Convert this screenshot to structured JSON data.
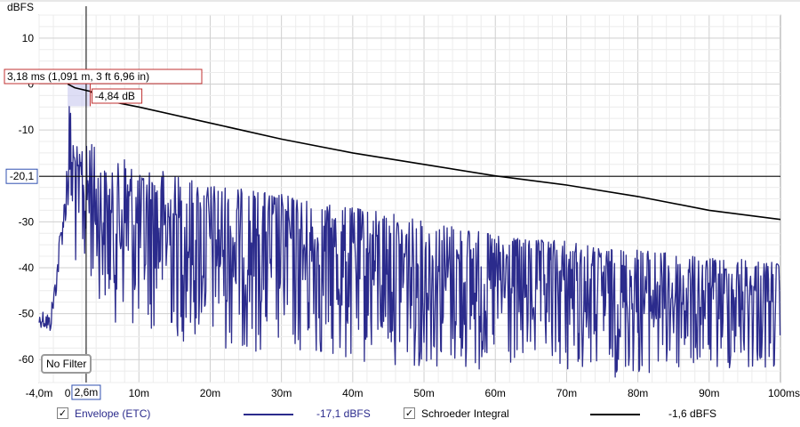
{
  "chart_data": {
    "type": "line",
    "ylabel": "dBFS",
    "xlabel": "",
    "xlim": [
      -4.0,
      100.0
    ],
    "ylim": [
      -65,
      15
    ],
    "x_ticks": [
      -4,
      0,
      10,
      20,
      30,
      40,
      50,
      60,
      70,
      80,
      90,
      100
    ],
    "x_tick_labels": [
      "-4,0m",
      "0",
      "10m",
      "20m",
      "30m",
      "40m",
      "50m",
      "60m",
      "70m",
      "80m",
      "90m",
      "100ms"
    ],
    "y_ticks": [
      10,
      0,
      -10,
      -20,
      -30,
      -40,
      -50,
      -60
    ],
    "y_tick_labels": [
      "10",
      "0",
      "-10",
      "",
      "-30",
      "-40",
      "-50",
      "-60"
    ],
    "grid": true,
    "cursor": {
      "x_label": "2,6m",
      "y_label": "-20,1",
      "x": 2.6,
      "y": -20.1
    },
    "annotations": [
      {
        "text": "3,18 ms (1,091 m, 3 ft 6,96 in)",
        "x": 3.18
      },
      {
        "text": "-4,84 dB",
        "value": -4.84
      }
    ],
    "series": [
      {
        "name": "Envelope (ETC)",
        "color": "#2b2b8c",
        "readout": "-17,1 dBFS",
        "x": [
          -4.0,
          -3.5,
          -3.0,
          -2.5,
          -2.0,
          -1.5,
          -1.0,
          -0.5,
          0.0,
          0.3,
          0.6,
          1.0,
          1.5,
          2.0,
          2.6,
          3.2,
          4,
          5,
          6,
          8,
          10,
          12,
          15,
          20,
          25,
          30,
          35,
          40,
          45,
          50,
          55,
          60,
          65,
          70,
          75,
          80,
          85,
          90,
          95,
          100
        ],
        "upper": [
          -50,
          -49,
          -49,
          -50,
          -45,
          -38,
          -30,
          -25,
          -10,
          -2,
          -12,
          -8,
          -17,
          -12,
          -14,
          -9,
          -16,
          -18,
          -20,
          -15,
          -20,
          -18,
          -20,
          -22,
          -23,
          -24,
          -26,
          -27,
          -28,
          -30,
          -31,
          -33,
          -34,
          -34,
          -36,
          -36,
          -37,
          -38,
          -38,
          -39
        ],
        "lower": [
          -53,
          -53,
          -54,
          -55,
          -50,
          -45,
          -38,
          -32,
          -30,
          -40,
          -35,
          -42,
          -38,
          -42,
          -45,
          -44,
          -46,
          -48,
          -52,
          -52,
          -55,
          -54,
          -56,
          -58,
          -58,
          -60,
          -60,
          -62,
          -61,
          -62,
          -63,
          -64,
          -63,
          -63,
          -64,
          -64,
          -64,
          -63,
          -63,
          -63
        ]
      },
      {
        "name": "Schroeder Integral",
        "color": "#000000",
        "readout": "-1,6 dBFS",
        "x": [
          0.0,
          1.0,
          3.18,
          5.0,
          10.0,
          20.0,
          30.0,
          40.0,
          50.0,
          60.0,
          70.0,
          80.0,
          90.0,
          100.0
        ],
        "values": [
          0.0,
          -0.8,
          -1.6,
          -3.5,
          -5.0,
          -8.5,
          -12.0,
          -15.0,
          -17.5,
          -20.0,
          -22.0,
          -24.5,
          -27.5,
          -29.5
        ]
      }
    ],
    "legend": "bottom"
  },
  "legend": {
    "etc_label": "Envelope (ETC)",
    "etc_value": "-17,1 dBFS",
    "etc_checked": "✓",
    "schroeder_label": "Schroeder Integral",
    "schroeder_value": "-1,6 dBFS",
    "schroeder_checked": "✓"
  },
  "filter_label": "No Filter"
}
